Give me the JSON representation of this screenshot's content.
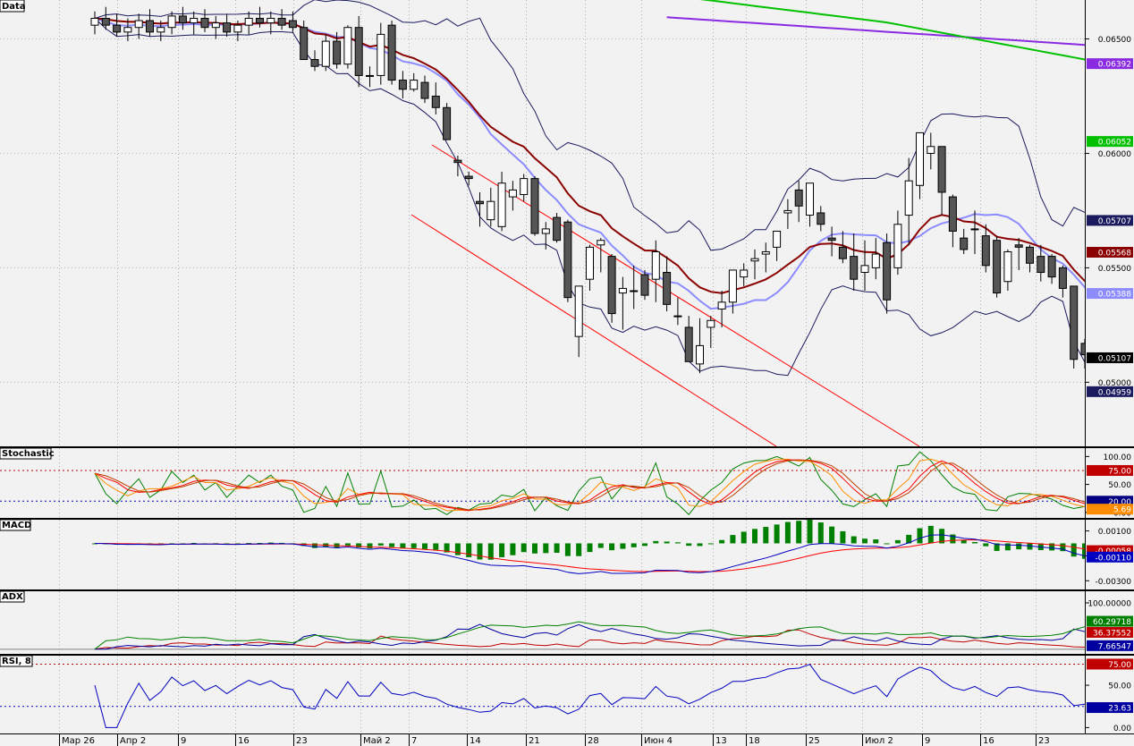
{
  "panels": {
    "price": {
      "label": "Data",
      "ticks": [
        "0.06500",
        "0.06000",
        "0.05500",
        "0.05000"
      ],
      "tick_values": [
        0.065,
        0.06,
        0.055,
        0.05
      ],
      "badges": [
        {
          "text": "0.06392",
          "value": 0.06392,
          "color": "#8a2be2"
        },
        {
          "text": "0.06052",
          "value": 0.06052,
          "color": "#00c000"
        },
        {
          "text": "0.05707",
          "value": 0.05707,
          "color": "#1a1a5e"
        },
        {
          "text": "0.05568",
          "value": 0.05568,
          "color": "#8b0000"
        },
        {
          "text": "0.05388",
          "value": 0.05388,
          "color": "#8c8cff"
        },
        {
          "text": "0.05107",
          "value": 0.05107,
          "color": "#000000"
        },
        {
          "text": "0.04959",
          "value": 0.04959,
          "color": "#1a1a5e"
        }
      ]
    },
    "stochastic": {
      "label": "Stochastic",
      "ticks": [
        "100.00",
        "50.00",
        "0.00"
      ],
      "tick_values": [
        100,
        50,
        0
      ],
      "levels": [
        75,
        20
      ],
      "badges": [
        {
          "text": "75.00",
          "value": 75,
          "color": "#c00000"
        },
        {
          "text": "20.00",
          "value": 20,
          "color": "#000080"
        },
        {
          "text": "5.69",
          "value": 5.69,
          "color": "#ff8c00"
        }
      ]
    },
    "macd": {
      "label": "MACD",
      "ticks": [
        "0.00100",
        "-0.00100",
        "-0.00300"
      ],
      "tick_values": [
        0.001,
        -0.001,
        -0.003
      ],
      "badges": [
        {
          "text": "-0.00058",
          "value": -0.00058,
          "color": "#c00000"
        },
        {
          "text": "-0.00110",
          "value": -0.0011,
          "color": "#0000c0"
        }
      ]
    },
    "adx": {
      "label": "ADX",
      "ticks": [
        "100.00000"
      ],
      "tick_values": [
        100
      ],
      "badges": [
        {
          "text": "60.29718",
          "value": 60.29718,
          "color": "#008000"
        },
        {
          "text": "36.37552",
          "value": 36.37552,
          "color": "#c00000"
        },
        {
          "text": "7.66547",
          "value": 7.66547,
          "color": "#0000a0"
        }
      ]
    },
    "rsi": {
      "label": "RSI, 8",
      "ticks": [
        "50.00",
        "0.00"
      ],
      "tick_values": [
        50,
        0
      ],
      "levels": [
        75,
        25
      ],
      "badges": [
        {
          "text": "75.00",
          "value": 75,
          "color": "#c00000"
        },
        {
          "text": "23.63",
          "value": 23.63,
          "color": "#0000a0"
        }
      ]
    }
  },
  "x_axis": {
    "labels": [
      {
        "text": "Мар 26",
        "bar": 4
      },
      {
        "text": "Апр 2",
        "bar": 9
      },
      {
        "text": "9",
        "bar": 14
      },
      {
        "text": "16",
        "bar": 19
      },
      {
        "text": "23",
        "bar": 24
      },
      {
        "text": "Май 2",
        "bar": 29
      },
      {
        "text": "7",
        "bar": 33
      },
      {
        "text": "14",
        "bar": 38
      },
      {
        "text": "21",
        "bar": 43
      },
      {
        "text": "28",
        "bar": 48
      },
      {
        "text": "Июн 4",
        "bar": 53
      },
      {
        "text": "13",
        "bar": 59
      },
      {
        "text": "18",
        "bar": 62
      },
      {
        "text": "25",
        "bar": 67
      },
      {
        "text": "Июл 2",
        "bar": 72
      },
      {
        "text": "9",
        "bar": 77
      },
      {
        "text": "16",
        "bar": 82
      },
      {
        "text": "23",
        "bar": 87
      }
    ]
  },
  "chart_data": {
    "type": "candlestick",
    "candles_ohlc": [
      [
        0.0656,
        0.0662,
        0.0652,
        0.0659
      ],
      [
        0.0659,
        0.0664,
        0.0654,
        0.0656
      ],
      [
        0.0656,
        0.0661,
        0.0651,
        0.0653
      ],
      [
        0.0653,
        0.0659,
        0.0649,
        0.0655
      ],
      [
        0.0655,
        0.0661,
        0.065,
        0.0658
      ],
      [
        0.0658,
        0.0663,
        0.0651,
        0.0653
      ],
      [
        0.0653,
        0.0658,
        0.0649,
        0.0655
      ],
      [
        0.0655,
        0.0662,
        0.0652,
        0.066
      ],
      [
        0.066,
        0.0664,
        0.0654,
        0.0657
      ],
      [
        0.0657,
        0.0662,
        0.0652,
        0.0659
      ],
      [
        0.0659,
        0.0663,
        0.0653,
        0.0655
      ],
      [
        0.0655,
        0.066,
        0.065,
        0.0657
      ],
      [
        0.0657,
        0.0661,
        0.0651,
        0.0653
      ],
      [
        0.0653,
        0.0658,
        0.0649,
        0.0656
      ],
      [
        0.0656,
        0.0662,
        0.0652,
        0.0659
      ],
      [
        0.0659,
        0.0664,
        0.0655,
        0.0657
      ],
      [
        0.0657,
        0.0662,
        0.0652,
        0.0659
      ],
      [
        0.0659,
        0.0663,
        0.0654,
        0.0656
      ],
      [
        0.0658,
        0.0662,
        0.0653,
        0.0655
      ],
      [
        0.0655,
        0.0658,
        0.0641,
        0.0641
      ],
      [
        0.0641,
        0.0645,
        0.0636,
        0.0638
      ],
      [
        0.0638,
        0.0652,
        0.0636,
        0.0649
      ],
      [
        0.0649,
        0.0653,
        0.0637,
        0.0639
      ],
      [
        0.0639,
        0.0656,
        0.0637,
        0.0655
      ],
      [
        0.0655,
        0.066,
        0.0629,
        0.0634
      ],
      [
        0.0634,
        0.0638,
        0.0629,
        0.0634
      ],
      [
        0.0634,
        0.0657,
        0.063,
        0.0652
      ],
      [
        0.0656,
        0.0658,
        0.063,
        0.0632
      ],
      [
        0.0632,
        0.0636,
        0.0624,
        0.0628
      ],
      [
        0.0628,
        0.0635,
        0.0627,
        0.0632
      ],
      [
        0.0631,
        0.0634,
        0.0622,
        0.0624
      ],
      [
        0.0625,
        0.0631,
        0.0617,
        0.062
      ],
      [
        0.062,
        0.0622,
        0.0608,
        0.0606
      ],
      [
        0.0597,
        0.0599,
        0.059,
        0.0596
      ],
      [
        0.059,
        0.0592,
        0.0586,
        0.0589
      ],
      [
        0.0579,
        0.0583,
        0.0568,
        0.0578
      ],
      [
        0.0571,
        0.0585,
        0.0568,
        0.0579
      ],
      [
        0.0568,
        0.0592,
        0.0566,
        0.0587
      ],
      [
        0.0581,
        0.0588,
        0.0575,
        0.0584
      ],
      [
        0.0582,
        0.0591,
        0.0579,
        0.0589
      ],
      [
        0.0589,
        0.059,
        0.0564,
        0.0565
      ],
      [
        0.0565,
        0.057,
        0.0558,
        0.0567
      ],
      [
        0.0572,
        0.0574,
        0.0561,
        0.0562
      ],
      [
        0.057,
        0.0571,
        0.0535,
        0.0537
      ],
      [
        0.052,
        0.0542,
        0.0511,
        0.0542
      ],
      [
        0.0545,
        0.056,
        0.054,
        0.0559
      ],
      [
        0.056,
        0.0563,
        0.0548,
        0.0562
      ],
      [
        0.0555,
        0.0556,
        0.0526,
        0.053
      ],
      [
        0.0539,
        0.0546,
        0.0523,
        0.0541
      ],
      [
        0.054,
        0.0551,
        0.0532,
        0.054
      ],
      [
        0.0547,
        0.0549,
        0.0536,
        0.0538
      ],
      [
        0.0545,
        0.0562,
        0.0535,
        0.0557
      ],
      [
        0.0548,
        0.0555,
        0.0531,
        0.0534
      ],
      [
        0.0529,
        0.0537,
        0.0525,
        0.0529
      ],
      [
        0.0524,
        0.0529,
        0.0511,
        0.0509
      ],
      [
        0.0508,
        0.0528,
        0.0504,
        0.0516
      ],
      [
        0.0524,
        0.0529,
        0.0515,
        0.0527
      ],
      [
        0.0532,
        0.054,
        0.0524,
        0.0535
      ],
      [
        0.0535,
        0.0548,
        0.053,
        0.0549
      ],
      [
        0.0546,
        0.0552,
        0.0542,
        0.0549
      ],
      [
        0.0553,
        0.0558,
        0.0545,
        0.0554
      ],
      [
        0.0556,
        0.0561,
        0.0548,
        0.0557
      ],
      [
        0.0559,
        0.0566,
        0.0553,
        0.0566
      ],
      [
        0.0574,
        0.058,
        0.0567,
        0.0575
      ],
      [
        0.0584,
        0.0588,
        0.057,
        0.0577
      ],
      [
        0.0573,
        0.0587,
        0.0568,
        0.0587
      ],
      [
        0.0574,
        0.0577,
        0.0566,
        0.0569
      ],
      [
        0.0563,
        0.0568,
        0.0555,
        0.0562
      ],
      [
        0.0559,
        0.0566,
        0.0552,
        0.0554
      ],
      [
        0.0555,
        0.0565,
        0.054,
        0.0545
      ],
      [
        0.0548,
        0.0562,
        0.054,
        0.0551
      ],
      [
        0.055,
        0.0563,
        0.0545,
        0.0556
      ],
      [
        0.0561,
        0.0565,
        0.053,
        0.0536
      ],
      [
        0.055,
        0.0575,
        0.0547,
        0.0569
      ],
      [
        0.0573,
        0.0598,
        0.056,
        0.0588
      ],
      [
        0.0586,
        0.0603,
        0.058,
        0.0609
      ],
      [
        0.06,
        0.0609,
        0.0593,
        0.0603
      ],
      [
        0.0603,
        0.0602,
        0.0573,
        0.0583
      ],
      [
        0.0581,
        0.0582,
        0.0559,
        0.0566
      ],
      [
        0.0563,
        0.0567,
        0.0556,
        0.0558
      ],
      [
        0.0567,
        0.0575,
        0.0556,
        0.0567
      ],
      [
        0.0564,
        0.0569,
        0.0548,
        0.0551
      ],
      [
        0.0562,
        0.0564,
        0.0537,
        0.0539
      ],
      [
        0.0544,
        0.0558,
        0.054,
        0.0557
      ],
      [
        0.056,
        0.0563,
        0.0549,
        0.0559
      ],
      [
        0.0559,
        0.056,
        0.0548,
        0.0552
      ],
      [
        0.0555,
        0.056,
        0.0544,
        0.0548
      ],
      [
        0.0555,
        0.0556,
        0.0543,
        0.0546
      ],
      [
        0.055,
        0.0551,
        0.0537,
        0.0541
      ],
      [
        0.0542,
        0.0534,
        0.0506,
        0.051
      ],
      [
        0.0517,
        0.0519,
        0.0506,
        0.0512
      ],
      [
        0.051,
        0.0519,
        0.0504,
        0.0513
      ],
      [
        0.0509,
        0.0523,
        0.0502,
        0.0511
      ]
    ],
    "overlays": [
      {
        "type": "line",
        "values": "computed moving averages and bands"
      }
    ]
  }
}
